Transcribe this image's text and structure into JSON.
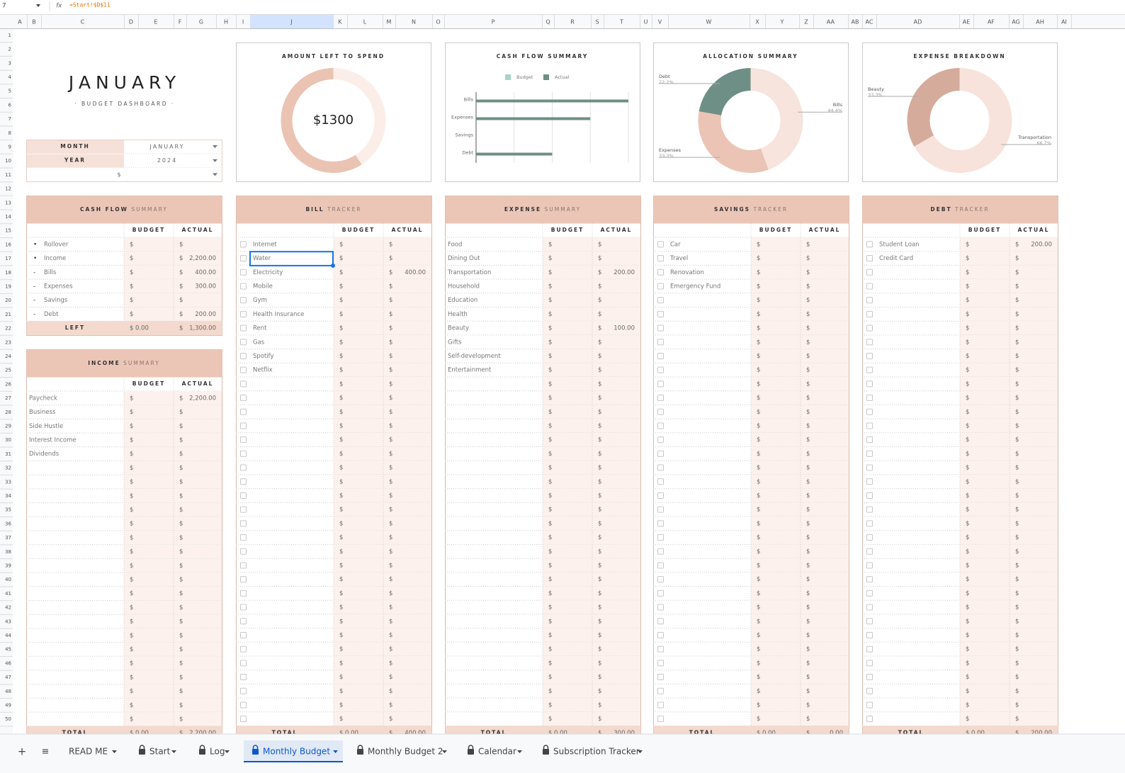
{
  "formula_bar": {
    "cell": "7",
    "formula": "=Start!$D$11"
  },
  "columns": [
    "A",
    "B",
    "C",
    "D",
    "E",
    "F",
    "G",
    "H",
    "I",
    "J",
    "K",
    "L",
    "M",
    "N",
    "O",
    "P",
    "Q",
    "R",
    "S",
    "T",
    "U",
    "V",
    "W",
    "X",
    "Y",
    "Z",
    "AA",
    "AB",
    "AC",
    "AD",
    "AE",
    "AF",
    "AG",
    "AH",
    "AI"
  ],
  "rows": [
    1,
    2,
    3,
    4,
    5,
    6,
    7,
    8,
    9,
    10,
    11,
    12,
    13,
    14,
    15,
    16,
    17,
    18,
    19,
    20,
    21,
    22,
    23,
    24,
    25,
    26,
    27,
    28,
    29,
    30,
    31,
    32,
    33,
    34,
    35,
    36,
    37,
    38,
    39,
    40,
    41,
    42,
    43,
    44,
    45,
    46,
    47,
    48,
    49,
    50
  ],
  "dashboard": {
    "title": "JANUARY",
    "subtitle": "· BUDGET DASHBOARD ·",
    "selector": [
      {
        "label": "MONTH",
        "value": "JANUARY"
      },
      {
        "label": "YEAR",
        "value": "2024"
      },
      {
        "value": "$"
      }
    ]
  },
  "currency": "$",
  "chart_data": [
    {
      "type": "donut",
      "title": "AMOUNT LEFT TO SPEND",
      "values": [
        900,
        1300
      ],
      "value_labels": [
        null,
        "$1300"
      ],
      "colors": [
        "#fbeee8",
        "#ebc3b3"
      ]
    },
    {
      "type": "hbar",
      "title": "CASH FLOW SUMMARY",
      "categories": [
        "Bills",
        "Expenses",
        "Savings",
        "Debt"
      ],
      "series": [
        {
          "name": "Budget",
          "color": "#a6d5c1",
          "values": [
            0,
            0,
            0,
            0
          ]
        },
        {
          "name": "Actual",
          "color": "#6e8f86",
          "values": [
            400,
            300,
            0,
            200
          ]
        }
      ],
      "xlim": [
        0,
        400
      ],
      "xticks": [
        0,
        100,
        200,
        300,
        400
      ],
      "grid": true,
      "legend": "top"
    },
    {
      "type": "donut",
      "title": "ALLOCATION SUMMARY",
      "categories": [
        "Bills",
        "Expenses",
        "Debt"
      ],
      "values": [
        44.4,
        33.3,
        22.2
      ],
      "value_labels": [
        "44.4%",
        "33.3%",
        "22.2%"
      ],
      "colors": [
        "#f6e4dd",
        "#ebc4b5",
        "#6e8f85"
      ]
    },
    {
      "type": "donut",
      "title": "EXPENSE BREAKDOWN",
      "categories": [
        "Transportation",
        "Beauty"
      ],
      "values": [
        66.7,
        33.3
      ],
      "value_labels": [
        "66.7%",
        "33.3%"
      ],
      "colors": [
        "#f7e3db",
        "#d5ab9c"
      ]
    }
  ],
  "tables": [
    {
      "title_bold": "CASH FLOW",
      "title_light": "SUMMARY",
      "headers": [
        "BUDGET",
        "ACTUAL"
      ],
      "rows": [
        {
          "marker": "•",
          "label": "Rollover"
        },
        {
          "marker": "•",
          "label": "Income",
          "actual": "2,200.00"
        },
        {
          "marker": "-",
          "label": "Bills",
          "actual": "400.00"
        },
        {
          "marker": "-",
          "label": "Expenses",
          "actual": "300.00"
        },
        {
          "marker": "-",
          "label": "Savings"
        },
        {
          "marker": "-",
          "label": "Debt",
          "actual": "200.00"
        }
      ],
      "footer": {
        "label": "LEFT",
        "budget": "0.00",
        "actual": "1,300.00"
      }
    },
    {
      "title_bold": "INCOME",
      "title_light": "SUMMARY",
      "headers": [
        "BUDGET",
        "ACTUAL"
      ],
      "rows": [
        {
          "label": "Paycheck",
          "actual": "2,200.00"
        },
        {
          "label": "Business"
        },
        {
          "label": "Side Hustle"
        },
        {
          "label": "Interest Income"
        },
        {
          "label": "Dividends"
        }
      ],
      "footer": {
        "label": "TOTAL",
        "budget": "0.00",
        "actual": "2,200.00"
      }
    },
    {
      "title_bold": "BILL",
      "title_light": "TRACKER",
      "headers": [
        "BUDGET",
        "ACTUAL"
      ],
      "checkbox": true,
      "rows": [
        {
          "label": "Internet"
        },
        {
          "label": "Water"
        },
        {
          "label": "Electricity",
          "actual": "400.00"
        },
        {
          "label": "Mobile"
        },
        {
          "label": "Gym"
        },
        {
          "label": "Health Insurance"
        },
        {
          "label": "Rent"
        },
        {
          "label": "Gas"
        },
        {
          "label": "Spotify"
        },
        {
          "label": "Netflix"
        }
      ],
      "footer": {
        "label": "TOTAL",
        "budget": "0.00",
        "actual": "400.00"
      }
    },
    {
      "title_bold": "EXPENSE",
      "title_light": "SUMMARY",
      "headers": [
        "BUDGET",
        "ACTUAL"
      ],
      "rows": [
        {
          "label": "Food"
        },
        {
          "label": "Dining Out"
        },
        {
          "label": "Transportation",
          "actual": "200.00"
        },
        {
          "label": "Household"
        },
        {
          "label": "Education"
        },
        {
          "label": "Health"
        },
        {
          "label": "Beauty",
          "actual": "100.00"
        },
        {
          "label": "Gifts"
        },
        {
          "label": "Self-development"
        },
        {
          "label": "Entertainment"
        }
      ],
      "footer": {
        "label": "TOTAL",
        "budget": "0.00",
        "actual": "300.00"
      }
    },
    {
      "title_bold": "SAVINGS",
      "title_light": "TRACKER",
      "headers": [
        "BUDGET",
        "ACTUAL"
      ],
      "checkbox": true,
      "rows": [
        {
          "label": "Car"
        },
        {
          "label": "Travel"
        },
        {
          "label": "Renovation"
        },
        {
          "label": "Emergency Fund"
        }
      ],
      "footer": {
        "label": "TOTAL",
        "budget": "0.00",
        "actual": "0.00"
      }
    },
    {
      "title_bold": "DEBT",
      "title_light": "TRACKER",
      "headers": [
        "BUDGET",
        "ACTUAL"
      ],
      "checkbox": true,
      "rows": [
        {
          "label": "Student Loan",
          "actual": "200.00"
        },
        {
          "label": "Credit Card"
        }
      ],
      "footer": {
        "label": "TOTAL",
        "budget": "0.00",
        "actual": "200.00"
      }
    }
  ],
  "tabs": [
    {
      "label": "READ ME"
    },
    {
      "label": "Start",
      "locked": true
    },
    {
      "label": "Log",
      "locked": true
    },
    {
      "label": "Monthly Budget",
      "locked": true,
      "active": true
    },
    {
      "label": "Monthly Budget 2",
      "locked": true
    },
    {
      "label": "Calendar",
      "locked": true
    },
    {
      "label": "Subscription Tracker",
      "locked": true
    }
  ]
}
